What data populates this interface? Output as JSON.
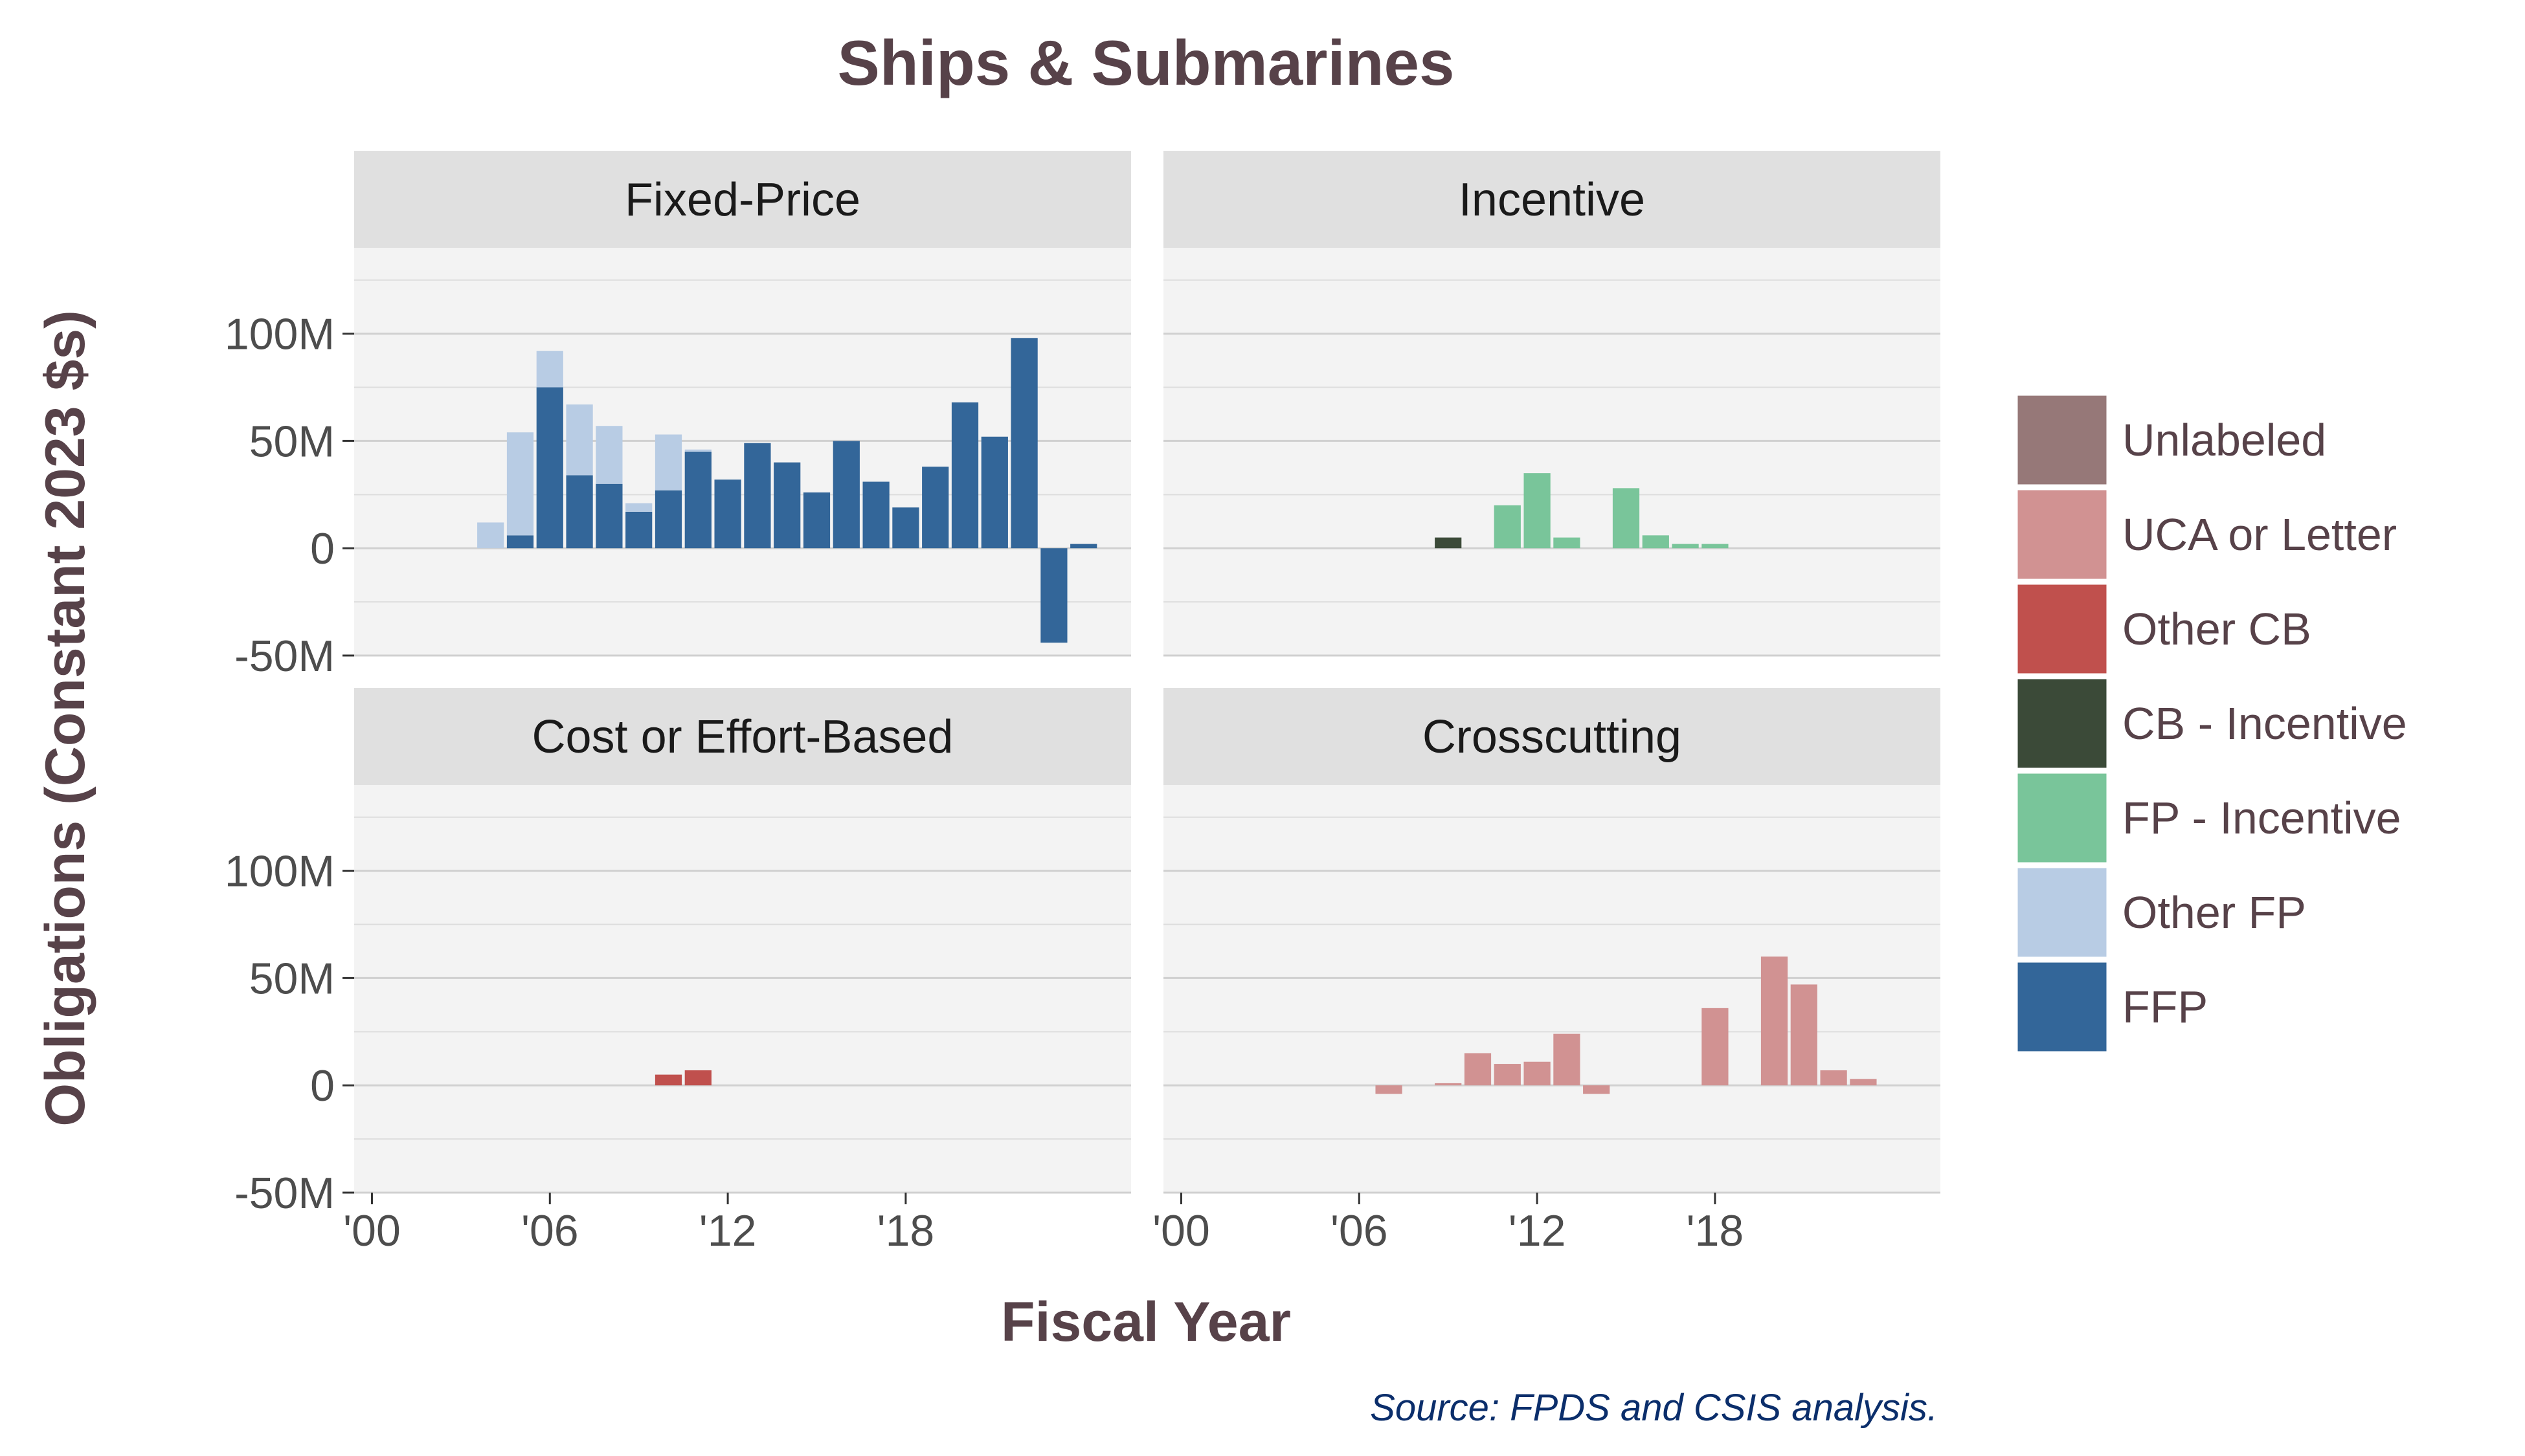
{
  "chart_data": {
    "type": "bar",
    "stacked": true,
    "title": "Ships & Submarines",
    "xlabel": "Fiscal Year",
    "ylabel": "Obligations (Constant 2023 $s)",
    "caption": "Source: FPDS and CSIS analysis.",
    "ylim": [
      -50,
      140
    ],
    "y_ticks": [
      -50,
      0,
      50,
      100
    ],
    "y_tick_labels": [
      "-50M",
      "0",
      "50M",
      "100M"
    ],
    "x_ticks": [
      2000,
      2006,
      2012,
      2018
    ],
    "x_tick_labels": [
      "'00",
      "'06",
      "'12",
      "'18"
    ],
    "xlim": [
      1999.4,
      2025.6
    ],
    "units": "millions of constant 2023 dollars",
    "grid": true,
    "legend_position": "right",
    "colors": {
      "Unlabeled": "#967878",
      "UCA or Letter": "#d19292",
      "Other CB": "#c0504d",
      "CB - Incentive": "#3b4a38",
      "FP - Incentive": "#79c59a",
      "Other FP": "#b8cce4",
      "FFP": "#336699"
    },
    "legend": [
      "Unlabeled",
      "UCA or Letter",
      "Other CB",
      "CB - Incentive",
      "FP - Incentive",
      "Other FP",
      "FFP"
    ],
    "panels": [
      {
        "name": "Fixed-Price",
        "years": [
          2004,
          2005,
          2006,
          2007,
          2008,
          2009,
          2010,
          2011,
          2012,
          2013,
          2014,
          2015,
          2016,
          2017,
          2018,
          2019,
          2020,
          2021,
          2022,
          2023,
          2024
        ],
        "series": [
          {
            "name": "FFP",
            "values": [
              0,
              6,
              75,
              34,
              30,
              17,
              27,
              45,
              32,
              49,
              40,
              26,
              50,
              31,
              19,
              38,
              68,
              52,
              98,
              -44,
              2
            ]
          },
          {
            "name": "Other FP",
            "values": [
              12,
              48,
              17,
              33,
              27,
              4,
              26,
              1,
              0,
              0,
              0,
              0,
              0,
              0,
              0,
              0,
              0,
              0,
              0,
              0,
              0
            ]
          }
        ]
      },
      {
        "name": "Incentive",
        "years": [
          2009,
          2011,
          2012,
          2013,
          2015,
          2016,
          2017,
          2018
        ],
        "series": [
          {
            "name": "CB - Incentive",
            "values": [
              5,
              0,
              0,
              0,
              0,
              0,
              0,
              0
            ]
          },
          {
            "name": "FP - Incentive",
            "values": [
              0,
              20,
              35,
              5,
              28,
              6,
              2,
              2
            ]
          }
        ]
      },
      {
        "name": "Cost or Effort-Based",
        "years": [
          2010,
          2011
        ],
        "series": [
          {
            "name": "Other CB",
            "values": [
              5,
              7
            ]
          }
        ]
      },
      {
        "name": "Crosscutting",
        "years": [
          2007,
          2009,
          2010,
          2011,
          2012,
          2013,
          2014,
          2018,
          2020,
          2021,
          2022,
          2023
        ],
        "series": [
          {
            "name": "UCA or Letter",
            "values": [
              -4,
              1,
              15,
              10,
              11,
              24,
              -4,
              36,
              60,
              47,
              7,
              3
            ]
          }
        ]
      }
    ]
  }
}
